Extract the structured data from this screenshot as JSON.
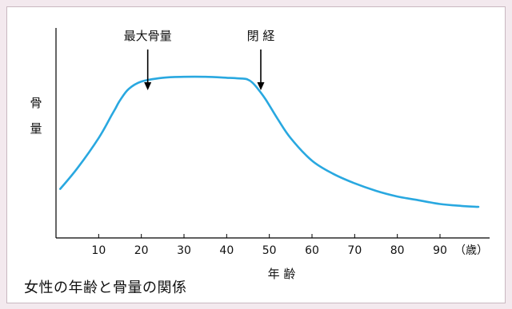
{
  "chart_data": {
    "type": "line",
    "title": "女性の年齢と骨量の関係",
    "xlabel": "年 齢",
    "ylabel_chars": [
      "骨",
      "量"
    ],
    "x_ticks": [
      10,
      20,
      30,
      40,
      50,
      60,
      70,
      80,
      90
    ],
    "x_unit": "（歳）",
    "xlim": [
      0,
      99
    ],
    "ylim": [
      0,
      100
    ],
    "grid": false,
    "line_color": "#29a8e0",
    "x": [
      1,
      5,
      10,
      13,
      14,
      15,
      17,
      20,
      25,
      30,
      35,
      40,
      44,
      45,
      46,
      47,
      49,
      52,
      55,
      60,
      65,
      70,
      75,
      80,
      85,
      90,
      95,
      99
    ],
    "y": [
      26,
      37,
      53,
      65,
      69,
      73,
      79,
      83,
      85,
      85.5,
      85.5,
      85,
      84.5,
      84,
      82.5,
      80,
      74,
      63,
      53,
      41,
      34,
      29,
      25,
      22,
      20,
      18,
      17,
      16.5
    ],
    "annotations": [
      {
        "label": "最大骨量",
        "x": 21.5,
        "y": 85
      },
      {
        "label": "閉 経",
        "x": 48,
        "y": 82
      }
    ]
  },
  "caption": "女性の年齢と骨量の関係"
}
